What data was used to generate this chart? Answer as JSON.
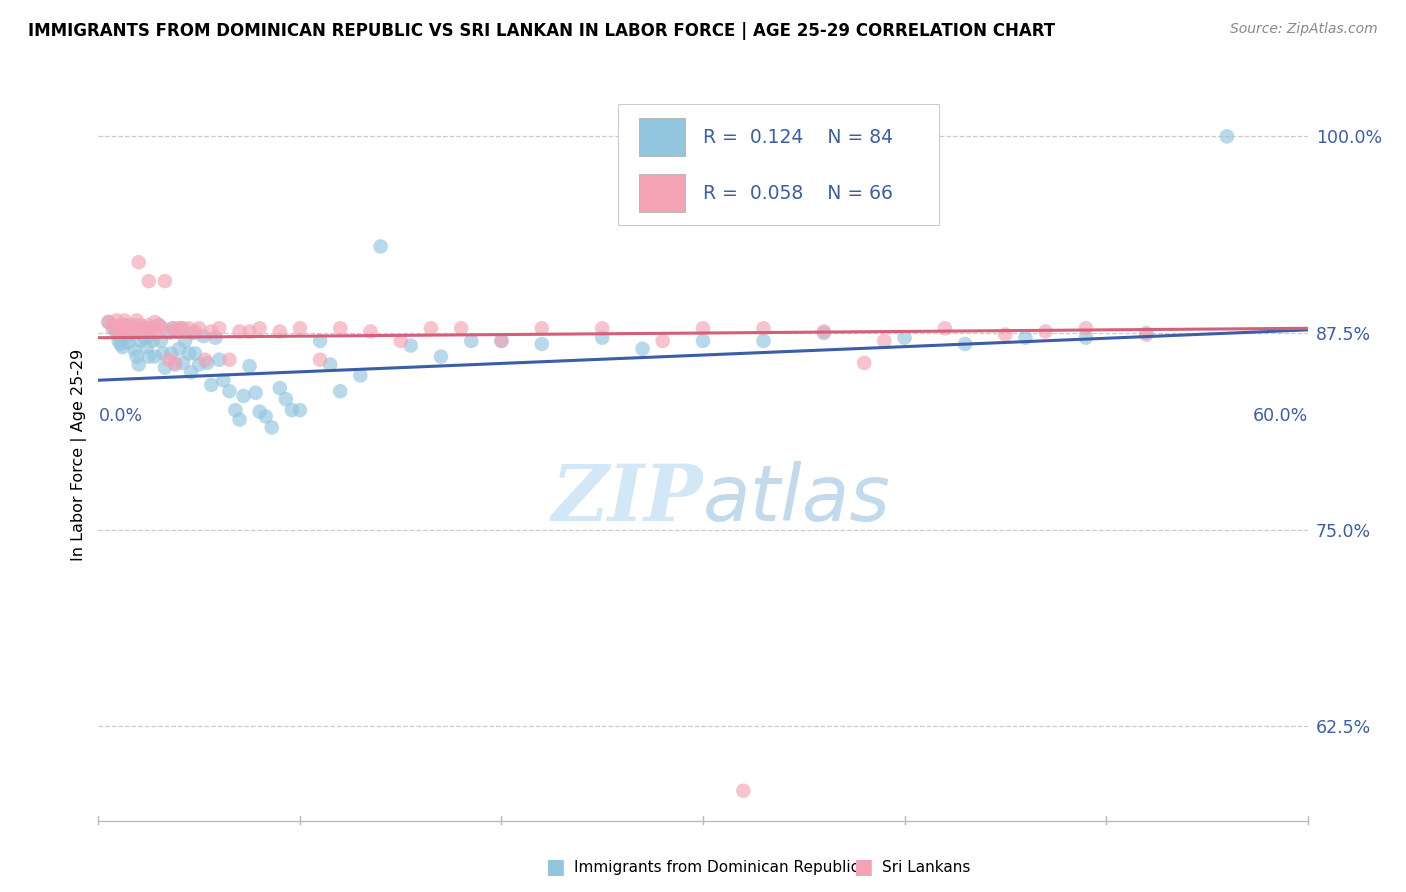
{
  "title": "IMMIGRANTS FROM DOMINICAN REPUBLIC VS SRI LANKAN IN LABOR FORCE | AGE 25-29 CORRELATION CHART",
  "source": "Source: ZipAtlas.com",
  "ylabel": "In Labor Force | Age 25-29",
  "ytick_values": [
    0.6,
    0.625,
    0.65,
    0.675,
    0.7,
    0.725,
    0.75,
    0.775,
    0.8,
    0.825,
    0.85,
    0.875,
    0.9,
    0.925,
    0.95,
    0.975,
    1.0
  ],
  "ytick_major": [
    0.625,
    0.75,
    0.875,
    1.0
  ],
  "ytick_labels": [
    "62.5%",
    "75.0%",
    "87.5%",
    "100.0%"
  ],
  "xmin": 0.0,
  "xmax": 0.6,
  "ymin": 0.565,
  "ymax": 1.03,
  "legend_R1": "0.124",
  "legend_N1": "84",
  "legend_R2": "0.058",
  "legend_N2": "66",
  "blue_color": "#92c5de",
  "pink_color": "#f4a3b5",
  "blue_line_color": "#3b5ea6",
  "pink_line_color": "#d45f7a",
  "scatter_alpha": 0.65,
  "marker_size": 110,
  "axis_label_color": "#3b5ea6",
  "watermark_color": "#cce4f5",
  "blue_line_x0": 0.0,
  "blue_line_y0": 0.845,
  "blue_line_x1": 0.6,
  "blue_line_y1": 0.877,
  "pink_line_x0": 0.0,
  "pink_line_y0": 0.872,
  "pink_line_x1": 0.6,
  "pink_line_y1": 0.878,
  "blue_scatter_x": [
    0.005,
    0.007,
    0.009,
    0.01,
    0.01,
    0.011,
    0.012,
    0.013,
    0.014,
    0.015,
    0.015,
    0.016,
    0.017,
    0.018,
    0.018,
    0.019,
    0.02,
    0.02,
    0.021,
    0.022,
    0.023,
    0.024,
    0.025,
    0.025,
    0.026,
    0.027,
    0.028,
    0.03,
    0.031,
    0.032,
    0.033,
    0.035,
    0.036,
    0.037,
    0.038,
    0.04,
    0.041,
    0.042,
    0.043,
    0.045,
    0.046,
    0.047,
    0.048,
    0.05,
    0.052,
    0.054,
    0.056,
    0.058,
    0.06,
    0.062,
    0.065,
    0.068,
    0.07,
    0.072,
    0.075,
    0.078,
    0.08,
    0.083,
    0.086,
    0.09,
    0.093,
    0.096,
    0.1,
    0.11,
    0.115,
    0.12,
    0.13,
    0.14,
    0.155,
    0.17,
    0.185,
    0.2,
    0.22,
    0.25,
    0.27,
    0.3,
    0.33,
    0.36,
    0.4,
    0.43,
    0.46,
    0.49,
    0.52,
    0.56
  ],
  "blue_scatter_y": [
    0.882,
    0.878,
    0.875,
    0.876,
    0.87,
    0.868,
    0.866,
    0.88,
    0.876,
    0.873,
    0.869,
    0.875,
    0.877,
    0.88,
    0.864,
    0.86,
    0.875,
    0.855,
    0.87,
    0.878,
    0.872,
    0.866,
    0.873,
    0.86,
    0.878,
    0.87,
    0.86,
    0.88,
    0.87,
    0.862,
    0.853,
    0.875,
    0.862,
    0.878,
    0.855,
    0.865,
    0.878,
    0.856,
    0.87,
    0.862,
    0.85,
    0.875,
    0.862,
    0.855,
    0.873,
    0.856,
    0.842,
    0.872,
    0.858,
    0.845,
    0.838,
    0.826,
    0.82,
    0.835,
    0.854,
    0.837,
    0.825,
    0.822,
    0.815,
    0.84,
    0.833,
    0.826,
    0.826,
    0.87,
    0.855,
    0.838,
    0.848,
    0.93,
    0.867,
    0.86,
    0.87,
    0.87,
    0.868,
    0.872,
    0.865,
    0.87,
    0.87,
    0.875,
    0.872,
    0.868,
    0.872,
    0.872,
    0.875,
    1.0
  ],
  "pink_scatter_x": [
    0.005,
    0.007,
    0.008,
    0.009,
    0.01,
    0.011,
    0.012,
    0.013,
    0.014,
    0.015,
    0.016,
    0.017,
    0.018,
    0.019,
    0.02,
    0.021,
    0.022,
    0.023,
    0.025,
    0.027,
    0.028,
    0.03,
    0.032,
    0.035,
    0.037,
    0.039,
    0.04,
    0.042,
    0.045,
    0.048,
    0.05,
    0.053,
    0.056,
    0.06,
    0.065,
    0.07,
    0.075,
    0.08,
    0.09,
    0.1,
    0.11,
    0.12,
    0.135,
    0.15,
    0.165,
    0.18,
    0.2,
    0.22,
    0.25,
    0.28,
    0.3,
    0.33,
    0.36,
    0.38,
    0.39,
    0.42,
    0.45,
    0.47,
    0.49,
    0.52,
    0.02,
    0.025,
    0.028,
    0.033,
    0.038,
    0.32
  ],
  "pink_scatter_y": [
    0.882,
    0.88,
    0.878,
    0.883,
    0.878,
    0.88,
    0.876,
    0.883,
    0.876,
    0.88,
    0.876,
    0.878,
    0.878,
    0.883,
    0.876,
    0.88,
    0.876,
    0.878,
    0.88,
    0.878,
    0.876,
    0.88,
    0.878,
    0.858,
    0.878,
    0.876,
    0.878,
    0.878,
    0.878,
    0.876,
    0.878,
    0.858,
    0.876,
    0.878,
    0.858,
    0.876,
    0.876,
    0.878,
    0.876,
    0.878,
    0.858,
    0.878,
    0.876,
    0.87,
    0.878,
    0.878,
    0.87,
    0.878,
    0.878,
    0.87,
    0.878,
    0.878,
    0.876,
    0.856,
    0.87,
    0.878,
    0.874,
    0.876,
    0.878,
    0.874,
    0.92,
    0.908,
    0.882,
    0.908,
    0.856,
    0.584
  ]
}
